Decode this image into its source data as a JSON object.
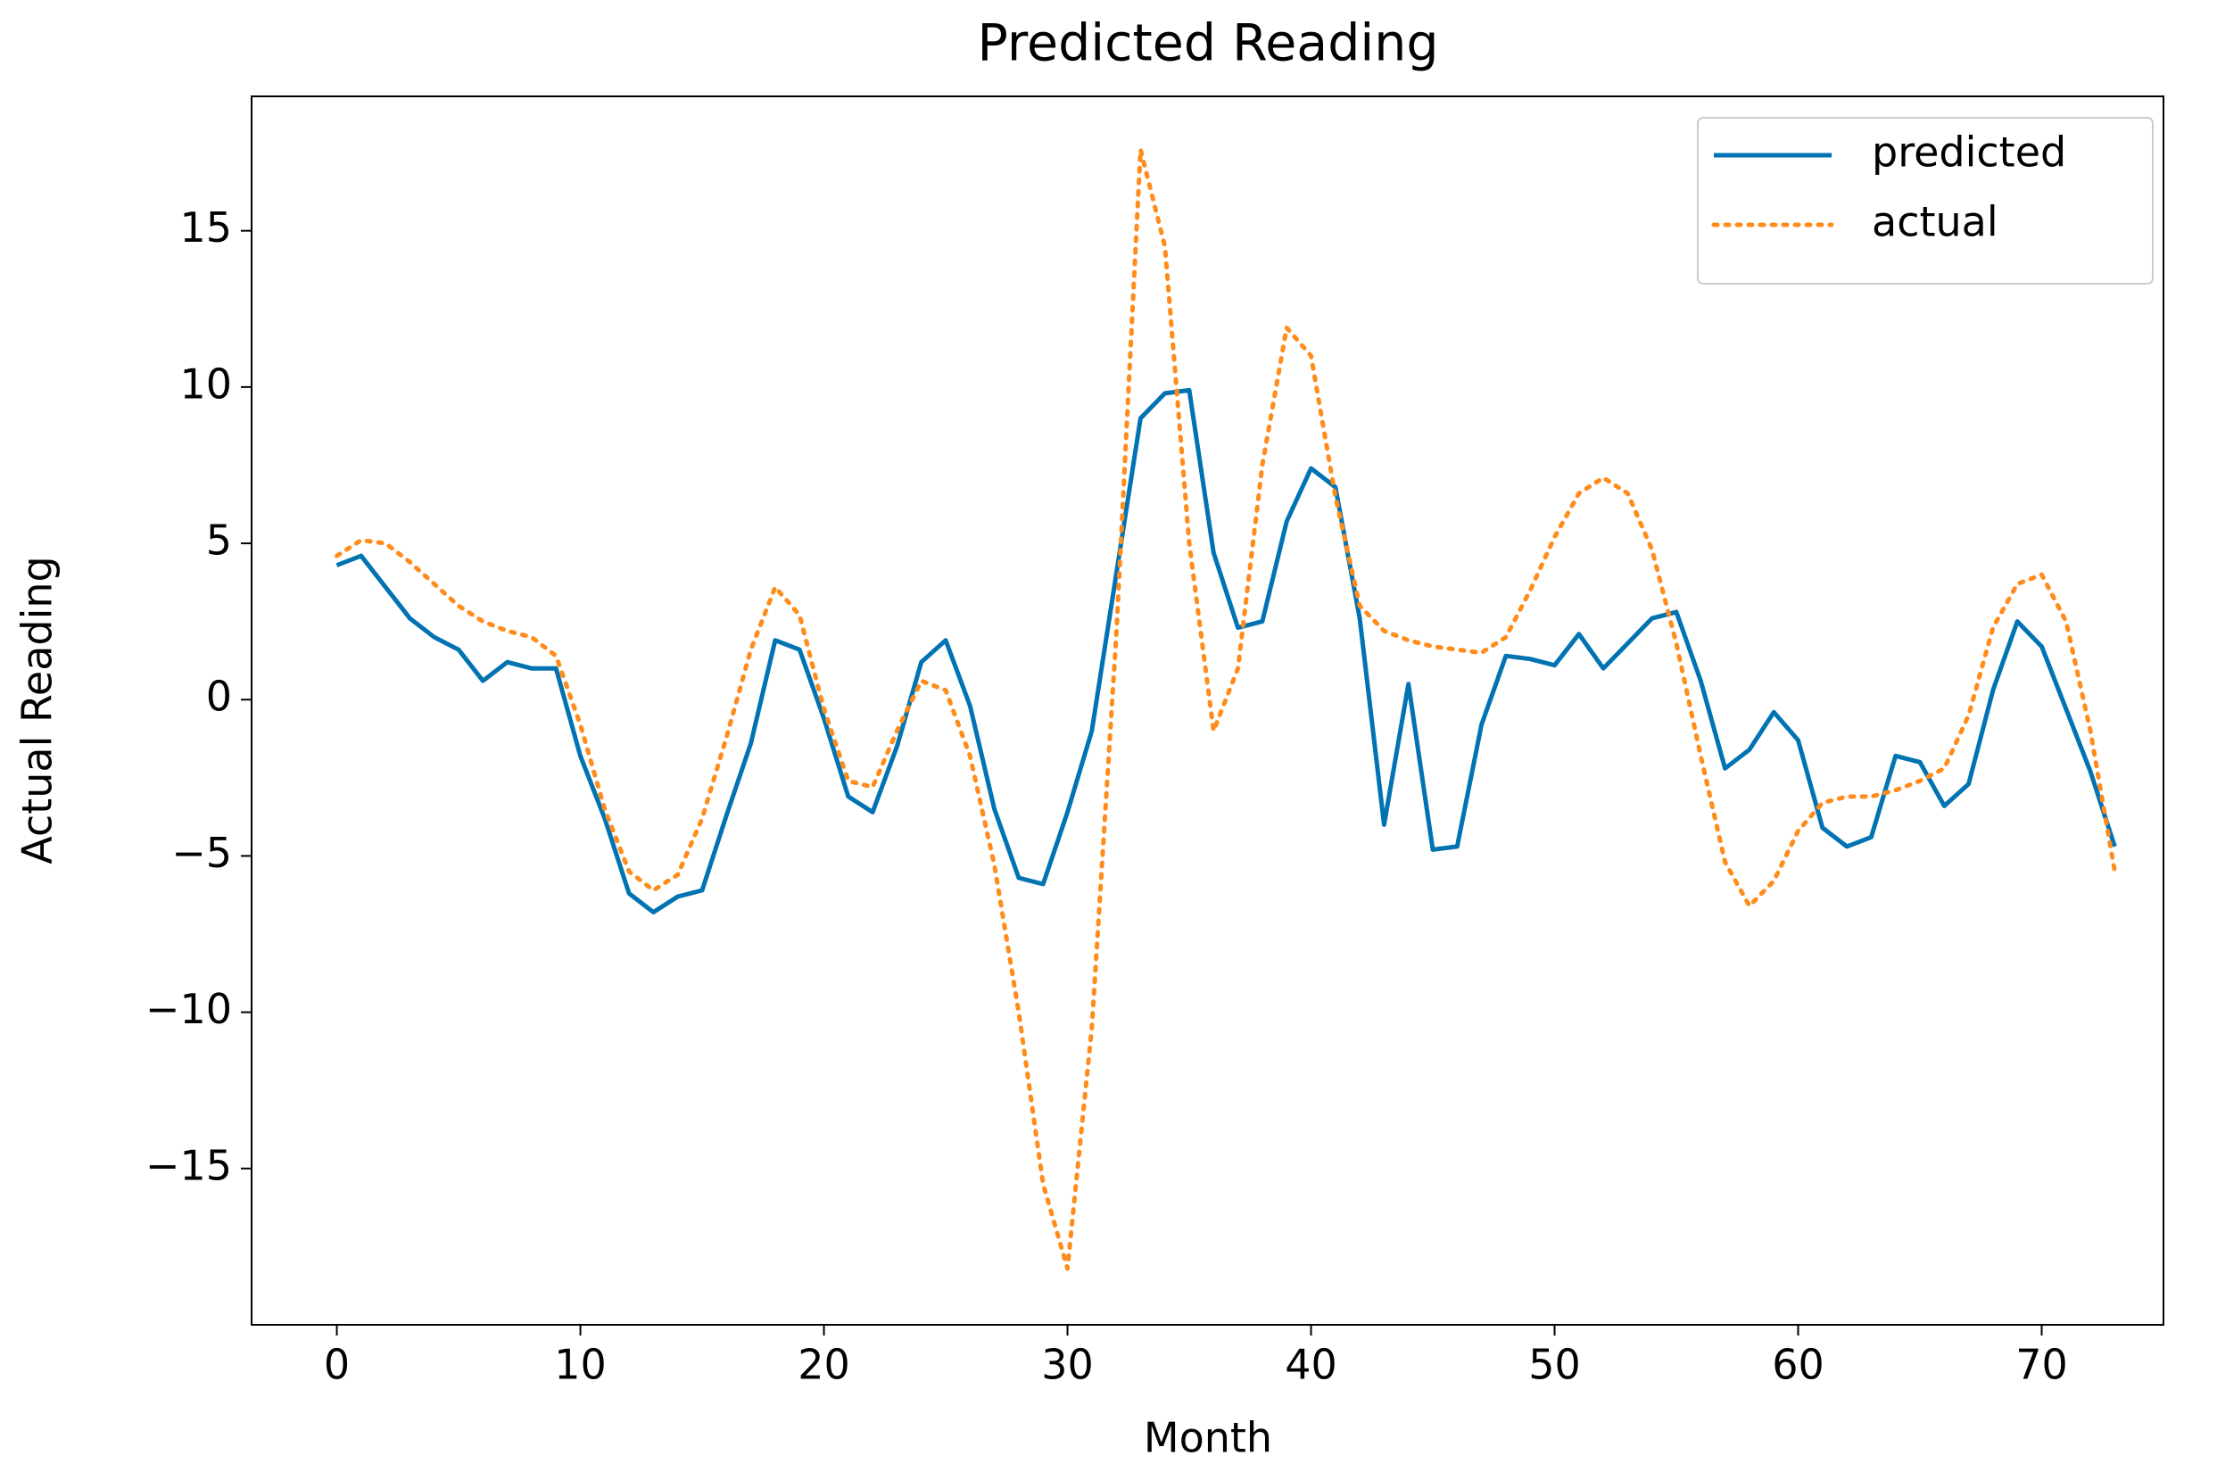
{
  "chart_data": {
    "type": "line",
    "title": "Predicted Reading",
    "xlabel": "Month",
    "ylabel": "Actual Reading",
    "x": [
      0,
      1,
      2,
      3,
      4,
      5,
      6,
      7,
      8,
      9,
      10,
      11,
      12,
      13,
      14,
      15,
      16,
      17,
      18,
      19,
      20,
      21,
      22,
      23,
      24,
      25,
      26,
      27,
      28,
      29,
      30,
      31,
      32,
      33,
      34,
      35,
      36,
      37,
      38,
      39,
      40,
      41,
      42,
      43,
      44,
      45,
      46,
      47,
      48,
      49,
      50,
      51,
      52,
      53,
      54,
      55,
      56,
      57,
      58,
      59,
      60,
      61,
      62,
      63,
      64,
      65,
      66,
      67,
      68,
      69,
      70,
      71,
      72,
      73
    ],
    "series": [
      {
        "name": "predicted",
        "color": "#0173b2",
        "dash": "solid",
        "values": [
          4.3,
          4.6,
          3.6,
          2.6,
          2.0,
          1.6,
          0.6,
          1.2,
          1.0,
          1.0,
          -1.8,
          -3.8,
          -6.2,
          -6.8,
          -6.3,
          -6.1,
          -3.7,
          -1.4,
          1.9,
          1.6,
          -0.6,
          -3.1,
          -3.6,
          -1.5,
          1.2,
          1.9,
          -0.2,
          -3.5,
          -5.7,
          -5.9,
          -3.6,
          -1.0,
          4.0,
          9.0,
          9.8,
          9.9,
          4.7,
          2.3,
          2.5,
          5.7,
          7.4,
          6.8,
          2.6,
          -4.0,
          0.5,
          -4.8,
          -4.7,
          -0.8,
          1.4,
          1.3,
          1.1,
          2.1,
          1.0,
          1.8,
          2.6,
          2.8,
          0.6,
          -2.2,
          -1.6,
          -0.4,
          -1.3,
          -4.1,
          -4.7,
          -4.4,
          -1.8,
          -2.0,
          -3.4,
          -2.7,
          0.3,
          2.5,
          1.7,
          -0.3,
          -2.3,
          -4.7
        ]
      },
      {
        "name": "actual",
        "color": "#ff8c1a",
        "dash": "dotted",
        "values": [
          4.6,
          5.1,
          5.0,
          4.4,
          3.7,
          3.0,
          2.5,
          2.2,
          2.0,
          1.4,
          -0.8,
          -3.5,
          -5.5,
          -6.1,
          -5.6,
          -3.8,
          -1.2,
          1.6,
          3.6,
          2.7,
          -0.3,
          -2.6,
          -2.8,
          -1.0,
          0.6,
          0.3,
          -1.8,
          -5.3,
          -10.0,
          -15.5,
          -18.2,
          -10.5,
          2.0,
          17.6,
          14.5,
          5.0,
          -1.0,
          1.0,
          7.5,
          11.9,
          11.0,
          6.5,
          3.0,
          2.2,
          1.9,
          1.7,
          1.6,
          1.5,
          2.0,
          3.5,
          5.2,
          6.6,
          7.1,
          6.6,
          4.8,
          1.8,
          -1.8,
          -5.2,
          -6.6,
          -5.8,
          -4.2,
          -3.3,
          -3.1,
          -3.1,
          -2.9,
          -2.6,
          -2.2,
          -0.5,
          2.3,
          3.7,
          4.0,
          2.5,
          -1.0,
          -5.5
        ]
      }
    ],
    "xlim": [
      -3.5,
      75
    ],
    "ylim": [
      -20,
      19.3
    ],
    "xticks": [
      0,
      10,
      20,
      30,
      40,
      50,
      60,
      70
    ],
    "yticks": [
      {
        "value": -15,
        "label": "−15"
      },
      {
        "value": -10,
        "label": "−10"
      },
      {
        "value": -5,
        "label": "−5"
      },
      0,
      5,
      10,
      15
    ],
    "grid": false,
    "legend": "upper right"
  }
}
